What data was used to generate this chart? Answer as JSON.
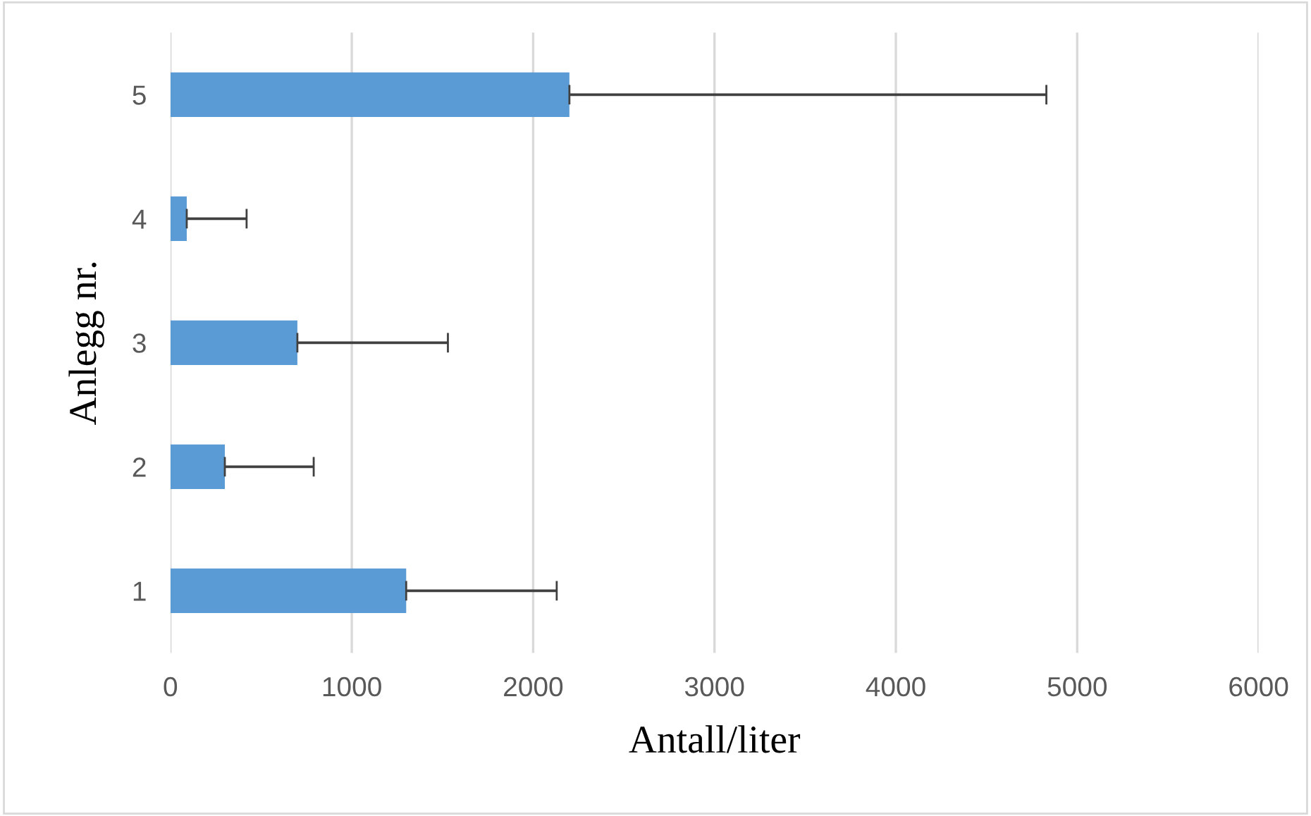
{
  "chart_data": {
    "type": "bar",
    "orientation": "horizontal",
    "categories": [
      "5",
      "4",
      "3",
      "2",
      "1"
    ],
    "values": [
      2200,
      90,
      700,
      300,
      1300
    ],
    "errors": [
      [
        2200,
        4830
      ],
      [
        90,
        420
      ],
      [
        700,
        1530
      ],
      [
        300,
        790
      ],
      [
        1300,
        2130
      ]
    ],
    "color": "#5b9bd5",
    "xlabel": "Antall/liter",
    "ylabel": "Anlegg nr.",
    "xlim": [
      0,
      6000
    ],
    "xticks": [
      0,
      1000,
      2000,
      3000,
      4000,
      5000,
      6000
    ],
    "grid": "x"
  }
}
